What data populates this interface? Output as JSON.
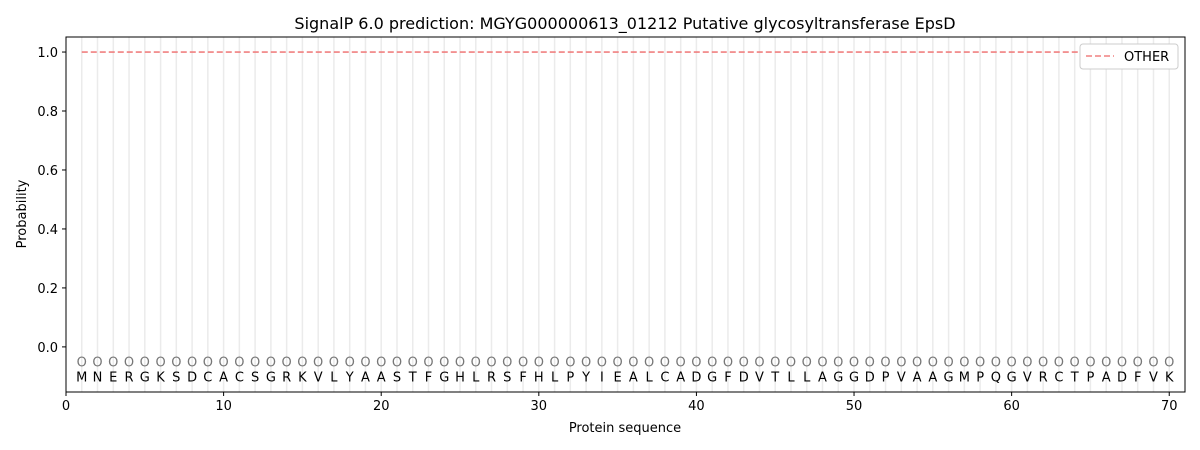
{
  "chart_data": {
    "type": "line",
    "title": "SignalP 6.0 prediction: MGYG000000613_01212 Putative glycosyltransferase EpsD",
    "xlabel": "Protein sequence",
    "ylabel": "Probability",
    "xlim": [
      0,
      71
    ],
    "ylim": [
      -0.153,
      1.051
    ],
    "xticks": [
      0,
      10,
      20,
      30,
      40,
      50,
      60,
      70
    ],
    "yticks": [
      "0.0",
      "0.2",
      "0.4",
      "0.6",
      "0.8",
      "1.0"
    ],
    "grid": "vertical lines at each residue",
    "legend_placement": "top-right",
    "sequence": "MNERGKSDCACSGRKVLYAASTFGHLRSFHLPYIEALCADGFDVTLLAGGDPVAAGMPQGVRCTPADFVK",
    "region_label": "O",
    "series": [
      {
        "name": "OTHER",
        "color": "#f08080",
        "style": "dashed",
        "x_start": 1,
        "x_end": 70,
        "value": 1.0
      }
    ]
  }
}
